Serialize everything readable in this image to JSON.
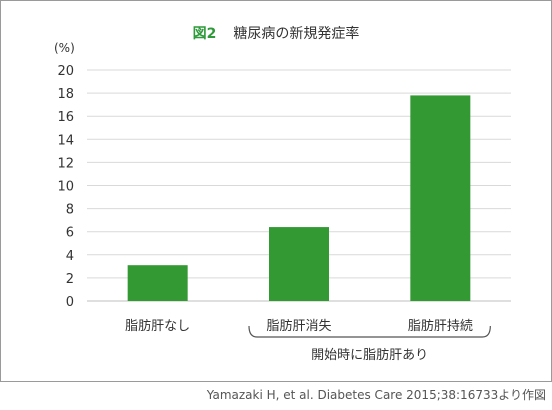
{
  "chart_data": {
    "type": "bar",
    "title_prefix": "図2",
    "title": "糖尿病の新規発症率",
    "unit": "(%)",
    "categories": [
      "脂肪肝なし",
      "脂肪肝消失",
      "脂肪肝持続"
    ],
    "values": [
      3.1,
      6.4,
      17.8
    ],
    "ylim": [
      0,
      20
    ],
    "yticks": [
      0,
      2,
      4,
      6,
      8,
      10,
      12,
      14,
      16,
      18,
      20
    ],
    "grid": true,
    "bar_color": "#339933",
    "group_label": "開始時に脂肪肝あり",
    "group_span": [
      1,
      2
    ]
  },
  "source": "Yamazaki H, et al. Diabetes Care 2015;38:16733より作図"
}
